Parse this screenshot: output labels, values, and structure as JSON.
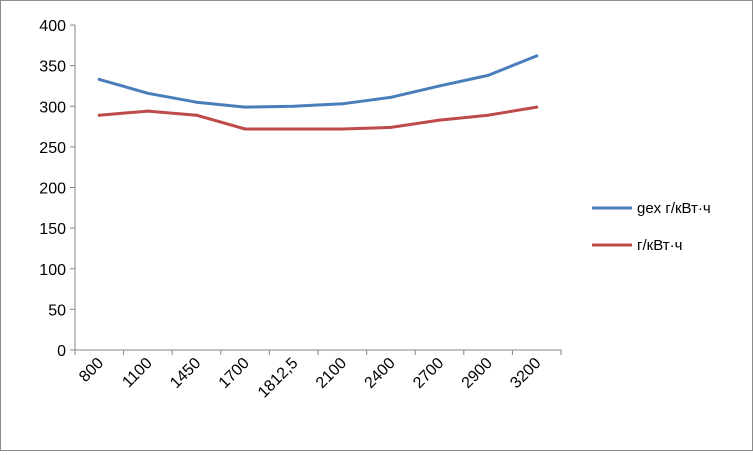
{
  "chart_data": {
    "type": "line",
    "categories": [
      "800",
      "1100",
      "1450",
      "1700",
      "1812,5",
      "2100",
      "2400",
      "2700",
      "2900",
      "3200"
    ],
    "series": [
      {
        "name": "gex г/кВт·ч",
        "color": "#4a7ebb",
        "values": [
          333,
          316,
          305,
          299,
          300,
          303,
          311,
          325,
          338,
          362
        ]
      },
      {
        "name": "г/кВт·ч",
        "color": "#be4b48",
        "values": [
          289,
          294,
          289,
          272,
          272,
          272,
          274,
          283,
          289,
          299
        ]
      }
    ],
    "ylim": [
      0,
      400
    ],
    "yticks": [
      0,
      50,
      100,
      150,
      200,
      250,
      300,
      350,
      400
    ],
    "grid": false,
    "legend_position": "right"
  }
}
